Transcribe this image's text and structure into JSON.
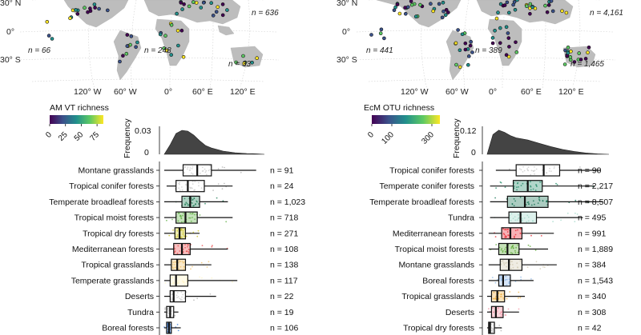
{
  "colors": {
    "land": "#bdbdbd",
    "graticule": "#d0d0d0",
    "density_fill": "#444444",
    "viridis": [
      "#440154",
      "#3b528b",
      "#21908c",
      "#5dc963",
      "#fde725"
    ]
  },
  "panels": [
    {
      "map": {
        "lat_labels": [
          "30° N",
          "0°",
          "30° S"
        ],
        "lon_labels": [
          "120° W",
          "60° W",
          "0°",
          "60° E",
          "120° E"
        ],
        "n_labels": [
          "n = 636",
          "n = 66",
          "n = 248",
          "n = 33"
        ]
      },
      "legend": {
        "title": "AM VT richness",
        "ticks": [
          "0",
          "25",
          "50",
          "75"
        ]
      },
      "density": {
        "ylabel": "Frequency",
        "yticks": [
          "0.03",
          "0"
        ],
        "xlim": [
          0,
          85
        ],
        "x": [
          0,
          5,
          10,
          15,
          20,
          25,
          30,
          35,
          40,
          45,
          50,
          55,
          60,
          65,
          70,
          75,
          80,
          85
        ],
        "y": [
          0.0,
          0.012,
          0.026,
          0.03,
          0.029,
          0.024,
          0.017,
          0.011,
          0.008,
          0.006,
          0.004,
          0.003,
          0.002,
          0.0015,
          0.001,
          0.0008,
          0.0005,
          0.0
        ]
      }
    },
    {
      "map": {
        "lat_labels": [
          "30° N",
          "0°",
          "30° S"
        ],
        "lon_labels": [
          "120° W",
          "60° W",
          "0°",
          "60° E",
          "120° E"
        ],
        "n_labels": [
          "n = 4,161",
          "n = 441",
          "n = 389",
          "n = 1,465"
        ]
      },
      "legend": {
        "title": "EcM OTU richness",
        "ticks": [
          "0",
          "100",
          "300"
        ]
      },
      "density": {
        "ylabel": "Frequency",
        "yticks": [
          "0.12",
          "0"
        ],
        "xlim": [
          0,
          420
        ],
        "x": [
          0,
          20,
          40,
          60,
          80,
          100,
          140,
          180,
          220,
          260,
          300,
          340,
          380,
          420
        ],
        "y": [
          0.0,
          0.09,
          0.11,
          0.1,
          0.085,
          0.075,
          0.065,
          0.05,
          0.035,
          0.022,
          0.013,
          0.006,
          0.002,
          0.0
        ]
      }
    }
  ],
  "chart_data": [
    {
      "type": "box",
      "xlim": [
        0,
        85
      ],
      "categories": [
        "Montane grasslands",
        "Tropical conifer forests",
        "Temperate broadleaf forests",
        "Tropical moist forests",
        "Tropical dry forests",
        "Mediterranean forests",
        "Tropical grasslands",
        "Temperate grasslands",
        "Deserts",
        "Tundra",
        "Boreal forests"
      ],
      "n_labels": [
        "n = 91",
        "n = 24",
        "n = 1,023",
        "n = 718",
        "n = 271",
        "n = 108",
        "n = 138",
        "n = 117",
        "n = 22",
        "n = 19",
        "n = 106"
      ],
      "colors": [
        "#ffffff",
        "#ffffff",
        "#1a7a52",
        "#5cae3f",
        "#c9c21e",
        "#ea4a4a",
        "#f0c066",
        "#fff3c4",
        "#ffffff",
        "#ffffff",
        "#3a7bd5"
      ],
      "boxes": [
        {
          "min": 0,
          "q1": 16,
          "median": 28,
          "q3": 40,
          "max": 78
        },
        {
          "min": 2,
          "q1": 10,
          "median": 20,
          "q3": 34,
          "max": 58
        },
        {
          "min": 0,
          "q1": 15,
          "median": 22,
          "q3": 30,
          "max": 54
        },
        {
          "min": 0,
          "q1": 10,
          "median": 18,
          "q3": 28,
          "max": 58
        },
        {
          "min": 0,
          "q1": 9,
          "median": 13,
          "q3": 18,
          "max": 30
        },
        {
          "min": 0,
          "q1": 8,
          "median": 15,
          "q3": 22,
          "max": 54
        },
        {
          "min": 0,
          "q1": 6,
          "median": 11,
          "q3": 18,
          "max": 40
        },
        {
          "min": 0,
          "q1": 5,
          "median": 10,
          "q3": 20,
          "max": 62
        },
        {
          "min": 0,
          "q1": 5,
          "median": 8,
          "q3": 18,
          "max": 44
        },
        {
          "min": 0,
          "q1": 2,
          "median": 5,
          "q3": 8,
          "max": 12
        },
        {
          "min": 0,
          "q1": 2,
          "median": 4,
          "q3": 6,
          "max": 14
        }
      ]
    },
    {
      "type": "box",
      "xlim": [
        0,
        420
      ],
      "categories": [
        "Tropical conifer forests",
        "Temperate conifer forests",
        "Temperate broadleaf forests",
        "Tundra",
        "Mediterranean forests",
        "Tropical moist forests",
        "Montane grasslands",
        "Boreal forests",
        "Tropical grasslands",
        "Deserts",
        "Tropical dry forests"
      ],
      "n_labels": [
        "n = 90",
        "n = 2,217",
        "n = 8,507",
        "n = 495",
        "n = 991",
        "n = 1,889",
        "n = 384",
        "n = 1,543",
        "n = 340",
        "n = 308",
        "n = 42"
      ],
      "colors": [
        "#ffffff",
        "#1f8a66",
        "#0d6e4e",
        "#9fd8c8",
        "#e8202a",
        "#5aa832",
        "#d0c8b0",
        "#8fb8e8",
        "#f0b040",
        "#f090a0",
        "#ffffff"
      ],
      "boxes": [
        {
          "min": 30,
          "q1": 100,
          "median": 195,
          "q3": 250,
          "max": 390
        },
        {
          "min": 10,
          "q1": 90,
          "median": 140,
          "q3": 190,
          "max": 370
        },
        {
          "min": 10,
          "q1": 70,
          "median": 130,
          "q3": 210,
          "max": 400
        },
        {
          "min": 10,
          "q1": 75,
          "median": 115,
          "q3": 170,
          "max": 330
        },
        {
          "min": 5,
          "q1": 50,
          "median": 80,
          "q3": 120,
          "max": 230
        },
        {
          "min": 5,
          "q1": 40,
          "median": 70,
          "q3": 110,
          "max": 210
        },
        {
          "min": 5,
          "q1": 45,
          "median": 75,
          "q3": 120,
          "max": 240
        },
        {
          "min": 5,
          "q1": 40,
          "median": 55,
          "q3": 80,
          "max": 160
        },
        {
          "min": 0,
          "q1": 15,
          "median": 35,
          "q3": 60,
          "max": 130
        },
        {
          "min": 0,
          "q1": 15,
          "median": 30,
          "q3": 55,
          "max": 110
        },
        {
          "min": 0,
          "q1": 5,
          "median": 10,
          "q3": 25,
          "max": 50
        }
      ]
    }
  ]
}
